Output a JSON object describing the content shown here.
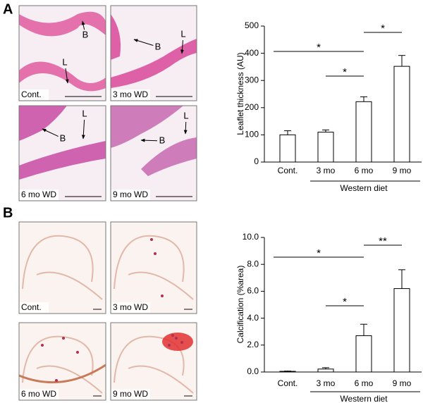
{
  "figure": {
    "panels": [
      {
        "letter": "A",
        "images": [
          {
            "label": "Cont.",
            "markers": [
              "B",
              "L"
            ]
          },
          {
            "label": "3 mo WD",
            "markers": [
              "B",
              "L"
            ]
          },
          {
            "label": "6 mo WD",
            "markers": [
              "B",
              "L"
            ]
          },
          {
            "label": "9 mo WD",
            "markers": [
              "B",
              "L"
            ]
          }
        ]
      },
      {
        "letter": "B",
        "images": [
          {
            "label": "Cont."
          },
          {
            "label": "3 mo WD"
          },
          {
            "label": "6 mo WD"
          },
          {
            "label": "9 mo WD"
          }
        ]
      }
    ]
  },
  "chart_data": [
    {
      "type": "bar",
      "y_label": "Leaflet thickness (AU)",
      "categories": [
        "Cont.",
        "3 mo",
        "6 mo",
        "9 mo"
      ],
      "values": [
        100,
        110,
        222,
        352
      ],
      "errors": [
        15,
        8,
        18,
        40
      ],
      "color": "#ffffff",
      "ylim": [
        0,
        500
      ],
      "yticks": [
        0,
        100,
        200,
        300,
        400,
        500
      ],
      "group": {
        "label": "Western diet",
        "categories": [
          "3 mo",
          "6 mo",
          "9 mo"
        ]
      },
      "annotations": [
        {
          "text": "*",
          "between": [
            "6 mo",
            "9 mo"
          ]
        },
        {
          "text": "*",
          "between": [
            "Cont.",
            "6 mo"
          ]
        },
        {
          "text": "*",
          "between": [
            "3 mo",
            "6 mo"
          ]
        }
      ]
    },
    {
      "type": "bar",
      "y_label": "Calcification (%area)",
      "categories": [
        "Cont.",
        "3 mo",
        "6 mo",
        "9 mo"
      ],
      "values": [
        0.05,
        0.22,
        2.7,
        6.2
      ],
      "errors": [
        0.02,
        0.1,
        0.85,
        1.4
      ],
      "color": "#ffffff",
      "ylim": [
        0,
        10
      ],
      "yticks": [
        {
          "value": 0,
          "label": "0.0"
        },
        {
          "value": 2,
          "label": "2.0"
        },
        {
          "value": 4,
          "label": "4.0"
        },
        {
          "value": 6,
          "label": "6.0"
        },
        {
          "value": 8,
          "label": "8.0"
        },
        {
          "value": 10,
          "label": "10.0"
        }
      ],
      "group": {
        "label": "Western diet",
        "categories": [
          "3 mo",
          "6 mo",
          "9 mo"
        ]
      },
      "annotations": [
        {
          "text": "**",
          "between": [
            "6 mo",
            "9 mo"
          ]
        },
        {
          "text": "*",
          "between": [
            "Cont.",
            "6 mo"
          ]
        },
        {
          "text": "*",
          "between": [
            "3 mo",
            "6 mo"
          ]
        }
      ]
    }
  ]
}
